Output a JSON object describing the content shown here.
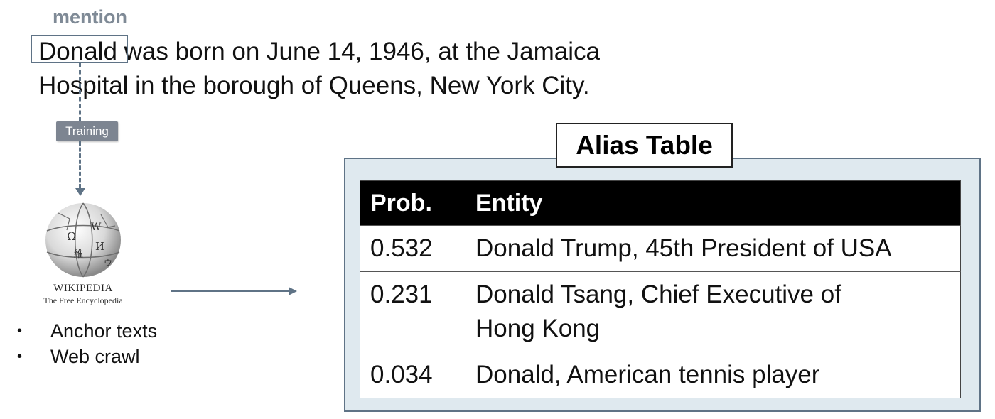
{
  "mention_label": "mention",
  "sentence": "Donald was born on June 14, 1946, at the Jamaica Hospital in the borough of Queens, New York City.",
  "training_label": "Training",
  "wikipedia": {
    "name": "Wikipedia",
    "tagline": "The Free Encyclopedia"
  },
  "sources": [
    "Anchor texts",
    "Web crawl"
  ],
  "alias_table": {
    "title": "Alias Table",
    "headers": [
      "Prob.",
      "Entity"
    ],
    "rows": [
      {
        "prob": "0.532",
        "entity": "Donald Trump, 45th President of USA"
      },
      {
        "prob": "0.231",
        "entity": "Donald Tsang, Chief Executive of Hong Kong"
      },
      {
        "prob": "0.034",
        "entity": "Donald, American tennis player"
      }
    ]
  },
  "colors": {
    "accent": "#5f7386",
    "panel": "#dfe9ef",
    "tag": "#7d8591"
  }
}
